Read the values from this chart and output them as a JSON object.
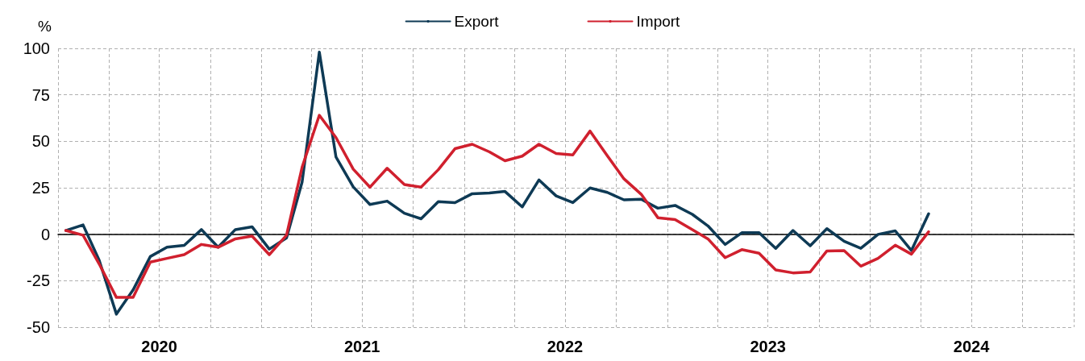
{
  "chart_data": {
    "type": "line",
    "ylabel": "%",
    "x": [
      "2020-01-15",
      "2020-02-15",
      "2020-03-15",
      "2020-04-15",
      "2020-05-15",
      "2020-06-15",
      "2020-07-15",
      "2020-08-15",
      "2020-09-15",
      "2020-10-15",
      "2020-11-15",
      "2020-12-15",
      "2021-01-15",
      "2021-02-15",
      "2021-03-15",
      "2021-04-15",
      "2021-05-15",
      "2021-06-15",
      "2021-07-15",
      "2021-08-15",
      "2021-09-15",
      "2021-10-15",
      "2021-11-15",
      "2021-12-15",
      "2022-01-15",
      "2022-02-15",
      "2022-03-15",
      "2022-04-15",
      "2022-05-15",
      "2022-06-15",
      "2022-07-15",
      "2022-08-15",
      "2022-09-15",
      "2022-10-15",
      "2022-11-15",
      "2022-12-15",
      "2023-01-15",
      "2023-02-15",
      "2023-03-15",
      "2023-04-15",
      "2023-05-15",
      "2023-06-15",
      "2023-07-15",
      "2023-08-15",
      "2023-09-15",
      "2023-10-15",
      "2023-11-15",
      "2023-12-15",
      "2024-01-15",
      "2024-02-15",
      "2024-03-15",
      "2024-04-15"
    ],
    "series": [
      {
        "name": "Export",
        "color": "#0e3a55",
        "values": [
          2,
          5,
          -14,
          -43,
          -30,
          -12,
          -7,
          -6,
          2.5,
          -7,
          2.5,
          4,
          -8,
          -2,
          28,
          98,
          41.5,
          25.5,
          16,
          17.8,
          11.3,
          8.3,
          17.5,
          17,
          21.8,
          22.2,
          23,
          14.7,
          29.2,
          20.6,
          17,
          24.9,
          22.5,
          18.5,
          18.8,
          14,
          15.5,
          10.7,
          4.5,
          -5.5,
          0.8,
          0.8,
          -7.6,
          2,
          -6.2,
          3,
          -3.8,
          -7.6,
          -0.1,
          1.8,
          -8.8,
          11
        ]
      },
      {
        "name": "Import",
        "color": "#d0202e",
        "values": [
          2,
          -0.5,
          -16,
          -34,
          -34,
          -15,
          -13,
          -11,
          -5.5,
          -7,
          -2.5,
          -1,
          -11,
          -0.5,
          36,
          64,
          52,
          35,
          25.3,
          35.5,
          26.7,
          25.3,
          34.7,
          46,
          48.4,
          44.3,
          39.5,
          42,
          48.4,
          43.4,
          42.7,
          55.5,
          42.2,
          29.8,
          21.5,
          8.9,
          7.9,
          2.5,
          -2.5,
          -12.6,
          -8.3,
          -10.2,
          -19.2,
          -20.8,
          -20.3,
          -9,
          -8.8,
          -17.2,
          -13,
          -5.9,
          -10.7,
          1.3
        ]
      }
    ],
    "xlim": [
      "2020-01-01",
      "2025-01-01"
    ],
    "xticks": [
      {
        "value": "2020-01-01",
        "label": null
      },
      {
        "value": "2020-04-01",
        "label": null
      },
      {
        "value": "2020-07-01",
        "label": "2020"
      },
      {
        "value": "2020-10-01",
        "label": null
      },
      {
        "value": "2021-01-01",
        "label": null
      },
      {
        "value": "2021-04-01",
        "label": null
      },
      {
        "value": "2021-07-01",
        "label": "2021"
      },
      {
        "value": "2021-10-01",
        "label": null
      },
      {
        "value": "2022-01-01",
        "label": null
      },
      {
        "value": "2022-04-01",
        "label": null
      },
      {
        "value": "2022-07-01",
        "label": "2022"
      },
      {
        "value": "2022-10-01",
        "label": null
      },
      {
        "value": "2023-01-01",
        "label": null
      },
      {
        "value": "2023-04-01",
        "label": null
      },
      {
        "value": "2023-07-01",
        "label": "2023"
      },
      {
        "value": "2023-10-01",
        "label": null
      },
      {
        "value": "2024-01-01",
        "label": null
      },
      {
        "value": "2024-04-01",
        "label": null
      },
      {
        "value": "2024-07-01",
        "label": "2024"
      },
      {
        "value": "2024-10-01",
        "label": null
      },
      {
        "value": "2025-01-01",
        "label": null
      }
    ],
    "ylim": [
      -50,
      100
    ],
    "yticks": [
      -50,
      -25,
      0,
      25,
      50,
      75,
      100
    ],
    "grid": true,
    "legend": "top",
    "marker": "none",
    "line_style": "solid"
  }
}
